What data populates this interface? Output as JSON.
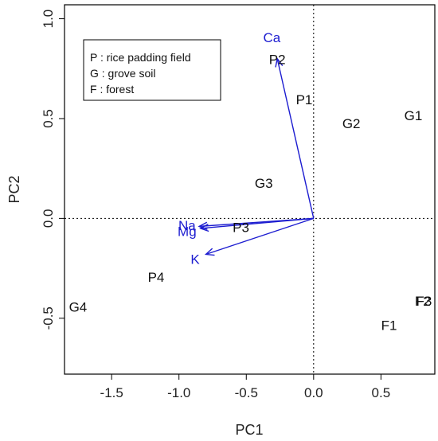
{
  "chart_data": {
    "type": "scatter",
    "title": "",
    "xlabel": "PC1",
    "ylabel": "PC2",
    "xlim": [
      -1.85,
      0.9
    ],
    "ylim": [
      -0.78,
      1.07
    ],
    "x_ticks": [
      -1.5,
      -1.0,
      -0.5,
      0.0,
      0.5
    ],
    "x_tick_labels": [
      "-1.5",
      "-1.0",
      "-0.5",
      "0.0",
      "0.5"
    ],
    "y_ticks": [
      -0.5,
      0.0,
      0.5,
      1.0
    ],
    "y_tick_labels": [
      "-0.5",
      "0.0",
      "0.5",
      "1.0"
    ],
    "reference_lines": {
      "x": 0,
      "y": 0,
      "style": "dotted"
    },
    "grid": false,
    "points": [
      {
        "label": "P2",
        "x": -0.27,
        "y": 0.79
      },
      {
        "label": "P1",
        "x": -0.07,
        "y": 0.59
      },
      {
        "label": "G2",
        "x": 0.28,
        "y": 0.47
      },
      {
        "label": "G1",
        "x": 0.74,
        "y": 0.51
      },
      {
        "label": "G3",
        "x": -0.37,
        "y": 0.17
      },
      {
        "label": "P3",
        "x": -0.54,
        "y": -0.05
      },
      {
        "label": "P4",
        "x": -1.17,
        "y": -0.3
      },
      {
        "label": "G4",
        "x": -1.75,
        "y": -0.45
      },
      {
        "label": "F3",
        "x": 0.82,
        "y": -0.42
      },
      {
        "label": "F2",
        "x": 0.81,
        "y": -0.42
      },
      {
        "label": "F1",
        "x": 0.56,
        "y": -0.54
      }
    ],
    "vectors": [
      {
        "label": "Ca",
        "x": -0.27,
        "y": 0.8,
        "label_x": -0.31,
        "label_y": 0.9
      },
      {
        "label": "Na",
        "x": -0.85,
        "y": -0.04,
        "label_x": -0.94,
        "label_y": -0.04
      },
      {
        "label": "Mg",
        "x": -0.84,
        "y": -0.05,
        "label_x": -0.94,
        "label_y": -0.07
      },
      {
        "label": "K",
        "x": -0.8,
        "y": -0.18,
        "label_x": -0.88,
        "label_y": -0.21
      }
    ],
    "legend": {
      "position": "top-left",
      "entries": [
        "P : rice padding field",
        "G : grove soil",
        "F : forest"
      ]
    },
    "colors": {
      "points": "#111111",
      "vectors": "#1c1cd0",
      "frame": "#000000"
    }
  }
}
